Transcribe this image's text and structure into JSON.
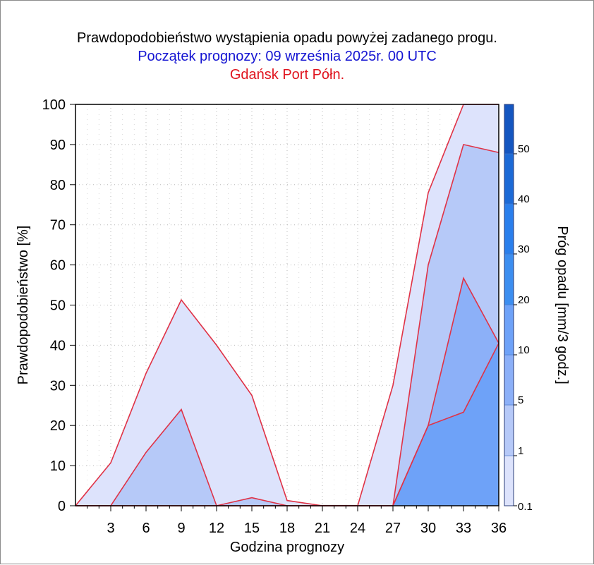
{
  "titles": {
    "line1": "Prawdopodobieństwo wystąpienia opadu powyżej zadanego progu.",
    "line2": "Początek prognozy: 09 września 2025r. 00 UTC",
    "line3": "Gdańsk Port Półn."
  },
  "colors": {
    "title1": "#000000",
    "title2": "#1414d2",
    "title3": "#e0141e",
    "series_outline": "#e03246",
    "band_colors": [
      "#dde3fc",
      "#b6c9f8",
      "#8cb0f8",
      "#6ea2f8",
      "#3c8ef0",
      "#2a7fec",
      "#1c6ad6",
      "#1456c0",
      "#0a3ca4",
      "#06287e"
    ]
  },
  "chart_data": {
    "type": "area",
    "xlabel": "Godzina prognozy",
    "ylabel": "Prawdopodobieństwo [%]",
    "xlim": [
      0,
      36
    ],
    "ylim": [
      0,
      100
    ],
    "x_ticks": [
      "3",
      "6",
      "9",
      "12",
      "15",
      "18",
      "21",
      "24",
      "27",
      "30",
      "33",
      "36"
    ],
    "y_ticks": [
      "0",
      "10",
      "20",
      "30",
      "40",
      "50",
      "60",
      "70",
      "80",
      "90",
      "100"
    ],
    "grid": true,
    "x": [
      0,
      3,
      6,
      9,
      12,
      15,
      18,
      21,
      24,
      27,
      30,
      33,
      36
    ],
    "series": [
      {
        "threshold": 0.1,
        "values": [
          0,
          10.7,
          33,
          51.3,
          40,
          27.5,
          1.3,
          0,
          0,
          30,
          78,
          100,
          100
        ]
      },
      {
        "threshold": 1,
        "values": [
          0,
          0,
          13.3,
          24,
          0,
          2,
          0,
          0,
          0,
          0,
          60,
          90,
          88
        ]
      },
      {
        "threshold": 5,
        "values": [
          0,
          0,
          0,
          0,
          0,
          0,
          0,
          0,
          0,
          0,
          20,
          56.7,
          40.5
        ]
      },
      {
        "threshold": 10,
        "values": [
          0,
          0,
          0,
          0,
          0,
          0,
          0,
          0,
          0,
          0,
          20,
          23.3,
          40.5
        ]
      }
    ],
    "colorbar": {
      "label": "Próg opadu [mm/3 godz.]",
      "tick_labels": [
        "0.1",
        "1",
        "5",
        "10",
        "20",
        "30",
        "40",
        "50"
      ]
    }
  }
}
